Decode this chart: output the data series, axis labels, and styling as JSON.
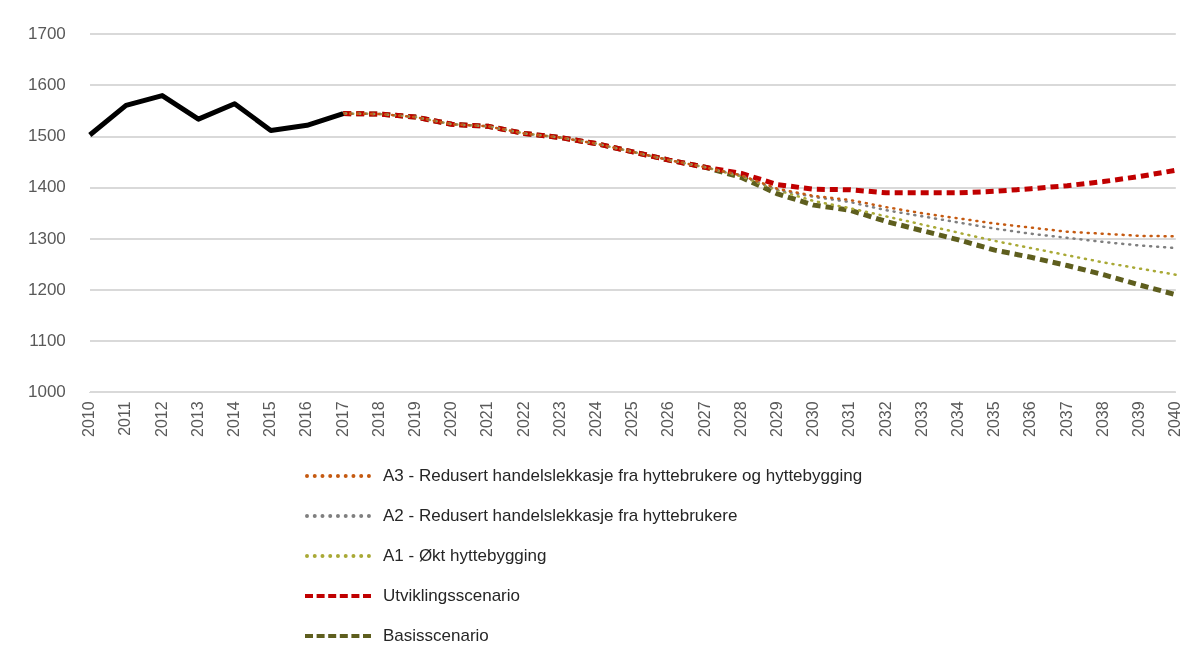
{
  "chart_data": {
    "type": "line",
    "categories": [
      "2010",
      "2011",
      "2012",
      "2013",
      "2014",
      "2015",
      "2016",
      "2017",
      "2018",
      "2019",
      "2020",
      "2021",
      "2022",
      "2023",
      "2024",
      "2025",
      "2026",
      "2027",
      "2028",
      "2029",
      "2030",
      "2031",
      "2032",
      "2033",
      "2034",
      "2035",
      "2036",
      "2037",
      "2038",
      "2039",
      "2040"
    ],
    "ylim": [
      1000,
      1700
    ],
    "yticks": [
      1000,
      1100,
      1200,
      1300,
      1400,
      1500,
      1600,
      1700
    ],
    "grid": "y",
    "legend": "bottom",
    "series": [
      {
        "color": "#000000",
        "line_style": "solid",
        "values": [
          1503,
          1561,
          1580,
          1534,
          1564,
          1512,
          1522,
          1545,
          null,
          null,
          null,
          null,
          null,
          null,
          null,
          null,
          null,
          null,
          null,
          null,
          null,
          null,
          null,
          null,
          null,
          null,
          null,
          null,
          null,
          null,
          null
        ]
      },
      {
        "name": "A3 - Redusert handelslekkasje fra hyttebrukere og hyttebygging",
        "color": "#c55a11",
        "line_style": "dotted",
        "values": [
          null,
          null,
          null,
          null,
          null,
          null,
          null,
          1545,
          1544,
          1538,
          1524,
          1520,
          1506,
          1498,
          1486,
          1470,
          1454,
          1440,
          1424,
          1398,
          1384,
          1376,
          1362,
          1350,
          1340,
          1330,
          1322,
          1314,
          1310,
          1306,
          1305
        ]
      },
      {
        "name": "A2 - Redusert handelslekkasje fra hyttebrukere",
        "color": "#7f7f7f",
        "line_style": "dotted",
        "values": [
          null,
          null,
          null,
          null,
          null,
          null,
          null,
          1545,
          1544,
          1538,
          1524,
          1520,
          1506,
          1498,
          1486,
          1470,
          1454,
          1440,
          1424,
          1396,
          1382,
          1372,
          1356,
          1344,
          1332,
          1320,
          1310,
          1302,
          1294,
          1287,
          1282
        ]
      },
      {
        "name": "A1 - Økt hyttebygging",
        "color": "#a9a936",
        "line_style": "dotted",
        "values": [
          null,
          null,
          null,
          null,
          null,
          null,
          null,
          1545,
          1544,
          1538,
          1524,
          1520,
          1506,
          1498,
          1486,
          1470,
          1454,
          1440,
          1422,
          1395,
          1374,
          1360,
          1344,
          1328,
          1312,
          1296,
          1282,
          1268,
          1254,
          1242,
          1230
        ]
      },
      {
        "name": "Utviklingsscenario",
        "color": "#c00000",
        "line_style": "dashed",
        "values": [
          null,
          null,
          null,
          null,
          null,
          null,
          null,
          1545,
          1544,
          1538,
          1524,
          1520,
          1506,
          1498,
          1486,
          1470,
          1454,
          1440,
          1428,
          1406,
          1397,
          1396,
          1390,
          1390,
          1390,
          1393,
          1398,
          1404,
          1412,
          1422,
          1434
        ]
      },
      {
        "name": "Basisscenario",
        "color": "#5e5e1e",
        "line_style": "dashed",
        "values": [
          null,
          null,
          null,
          null,
          null,
          null,
          null,
          1545,
          1544,
          1538,
          1524,
          1520,
          1506,
          1498,
          1486,
          1470,
          1454,
          1440,
          1420,
          1388,
          1366,
          1356,
          1334,
          1316,
          1298,
          1278,
          1264,
          1248,
          1230,
          1210,
          1191
        ]
      }
    ]
  }
}
